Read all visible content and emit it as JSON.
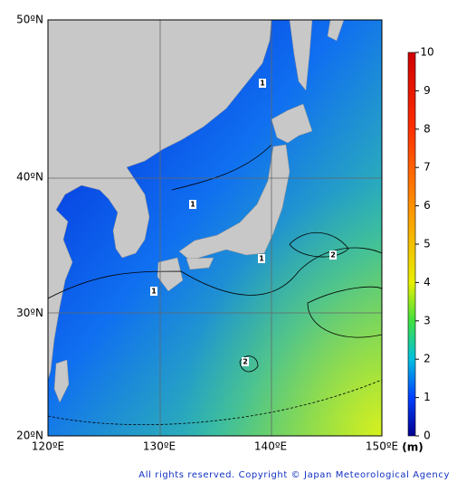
{
  "map": {
    "lat_labels": [
      {
        "value": 50,
        "label": "50ºN"
      },
      {
        "value": 40,
        "label": "40ºN"
      },
      {
        "value": 30,
        "label": "30ºN"
      },
      {
        "value": 20,
        "label": "20ºN"
      }
    ],
    "lon_labels": [
      {
        "value": 120,
        "label": "120ºE"
      },
      {
        "value": 130,
        "label": "130ºE"
      },
      {
        "value": 140,
        "label": "140ºE"
      },
      {
        "value": 150,
        "label": "150ºE"
      }
    ],
    "contour_labels": [
      "1",
      "1",
      "2",
      "2",
      "1",
      "1"
    ]
  },
  "colorbar": {
    "range": [
      0,
      10
    ],
    "ticks": [
      0,
      1,
      2,
      3,
      4,
      5,
      6,
      7,
      8,
      9,
      10
    ],
    "unit": "(m)"
  },
  "footer": {
    "copyright": "All rights reserved. Copyright © Japan Meteorological Agency"
  }
}
